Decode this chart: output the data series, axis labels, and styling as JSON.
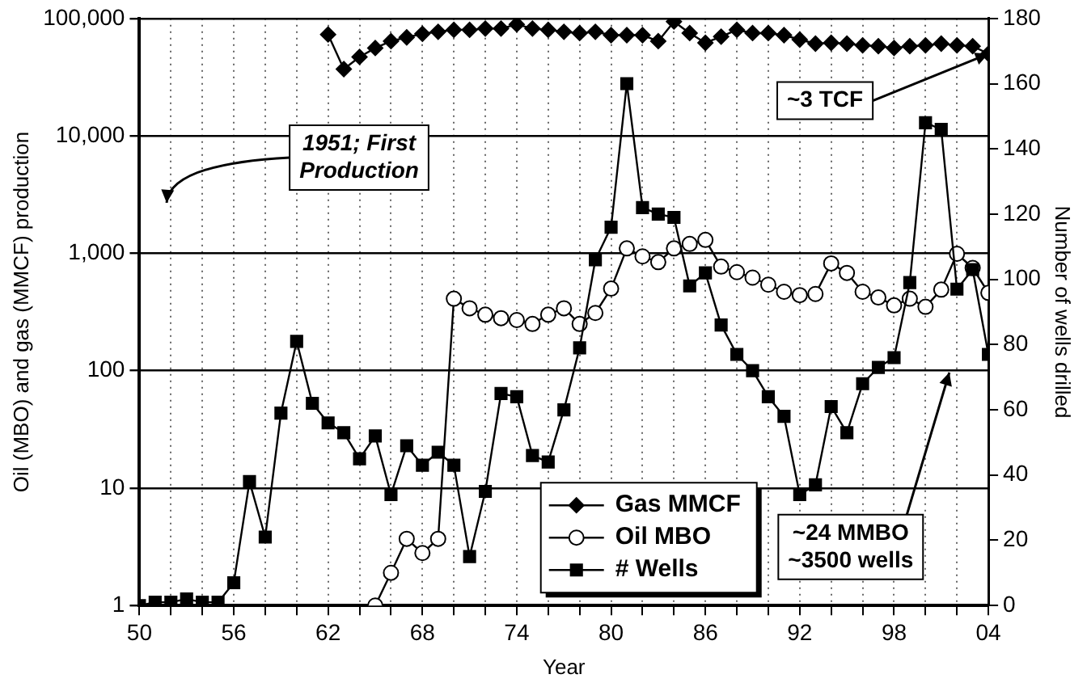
{
  "chart_data": {
    "type": "line",
    "xlabel": "Year",
    "ylabel": "Oil (MBO) and gas (MMCF) production",
    "y2label": "Number of wells drilled",
    "x": [
      1950,
      1951,
      1952,
      1953,
      1954,
      1955,
      1956,
      1957,
      1958,
      1959,
      1960,
      1961,
      1962,
      1963,
      1964,
      1965,
      1966,
      1967,
      1968,
      1969,
      1970,
      1971,
      1972,
      1973,
      1974,
      1975,
      1976,
      1977,
      1978,
      1979,
      1980,
      1981,
      1982,
      1983,
      1984,
      1985,
      1986,
      1987,
      1988,
      1989,
      1990,
      1991,
      1992,
      1993,
      1994,
      1995,
      1996,
      1997,
      1998,
      1999,
      2000,
      2001,
      2002,
      2003,
      2004
    ],
    "series": [
      {
        "name": "Gas MMCF",
        "color": "#000000",
        "marker": "diamond",
        "values": [
          null,
          null,
          null,
          null,
          null,
          null,
          null,
          null,
          null,
          null,
          null,
          null,
          73000,
          37000,
          47000,
          56000,
          64000,
          69000,
          74000,
          77000,
          80000,
          80000,
          82000,
          82000,
          89000,
          82000,
          80000,
          77000,
          75000,
          77000,
          72000,
          72000,
          72000,
          64000,
          94000,
          75000,
          62000,
          70000,
          80000,
          75000,
          75000,
          72000,
          66000,
          61000,
          62000,
          61000,
          59000,
          58000,
          56000,
          58000,
          59000,
          61000,
          59000,
          58000,
          50000
        ]
      },
      {
        "name": "Oil MBO",
        "color": "#000000",
        "marker": "circle",
        "values": [
          null,
          null,
          null,
          null,
          null,
          null,
          null,
          null,
          null,
          null,
          null,
          null,
          null,
          null,
          null,
          1,
          1.9,
          3.7,
          2.8,
          3.7,
          410,
          340,
          300,
          280,
          270,
          250,
          300,
          340,
          250,
          310,
          500,
          1100,
          940,
          840,
          1100,
          1200,
          1300,
          770,
          690,
          620,
          540,
          470,
          440,
          450,
          820,
          680,
          470,
          420,
          360,
          410,
          350,
          490,
          990,
          750,
          460
        ]
      },
      {
        "name": "# Wells",
        "color": "#000000",
        "marker": "square",
        "axis": "y2",
        "values": [
          0,
          1,
          1,
          2,
          1,
          1,
          7,
          38,
          21,
          59,
          81,
          62,
          56,
          53,
          45,
          52,
          34,
          49,
          43,
          47,
          43,
          15,
          35,
          65,
          64,
          46,
          44,
          60,
          79,
          106,
          116,
          160,
          122,
          120,
          119,
          98,
          102,
          86,
          77,
          72,
          64,
          58,
          34,
          37,
          61,
          53,
          68,
          73,
          76,
          99,
          148,
          146,
          97,
          103,
          77
        ]
      }
    ],
    "xlim": [
      1950,
      2004
    ],
    "xticks": [
      {
        "value": 1950,
        "label": "50"
      },
      {
        "value": 1952,
        "label": null
      },
      {
        "value": 1954,
        "label": null
      },
      {
        "value": 1956,
        "label": "56"
      },
      {
        "value": 1958,
        "label": null
      },
      {
        "value": 1960,
        "label": null
      },
      {
        "value": 1962,
        "label": "62"
      },
      {
        "value": 1964,
        "label": null
      },
      {
        "value": 1966,
        "label": null
      },
      {
        "value": 1968,
        "label": "68"
      },
      {
        "value": 1970,
        "label": null
      },
      {
        "value": 1972,
        "label": null
      },
      {
        "value": 1974,
        "label": "74"
      },
      {
        "value": 1976,
        "label": null
      },
      {
        "value": 1978,
        "label": null
      },
      {
        "value": 1980,
        "label": "80"
      },
      {
        "value": 1982,
        "label": null
      },
      {
        "value": 1984,
        "label": null
      },
      {
        "value": 1986,
        "label": "86"
      },
      {
        "value": 1988,
        "label": null
      },
      {
        "value": 1990,
        "label": null
      },
      {
        "value": 1992,
        "label": "92"
      },
      {
        "value": 1994,
        "label": null
      },
      {
        "value": 1996,
        "label": null
      },
      {
        "value": 1998,
        "label": "98"
      },
      {
        "value": 2000,
        "label": null
      },
      {
        "value": 2002,
        "label": null
      },
      {
        "value": 2004,
        "label": "04"
      }
    ],
    "ylim": [
      1,
      100000
    ],
    "yticks": [
      1,
      10,
      100,
      {
        "value": 1000,
        "label": "1,000"
      },
      {
        "value": 10000,
        "label": "10,000"
      },
      {
        "value": 100000,
        "label": "100,000"
      }
    ],
    "y2lim": [
      0,
      180
    ],
    "y2ticks": [
      0,
      20,
      40,
      60,
      80,
      100,
      120,
      140,
      160,
      180
    ],
    "log": "y",
    "grid": true,
    "legend": "bottom",
    "line_style": "solid",
    "annotations": [
      "1951; First Production",
      {
        "text": "~3 TCF",
        "x": 2004,
        "y": 50000
      },
      "~24 MMBO ~3500 wells"
    ]
  }
}
